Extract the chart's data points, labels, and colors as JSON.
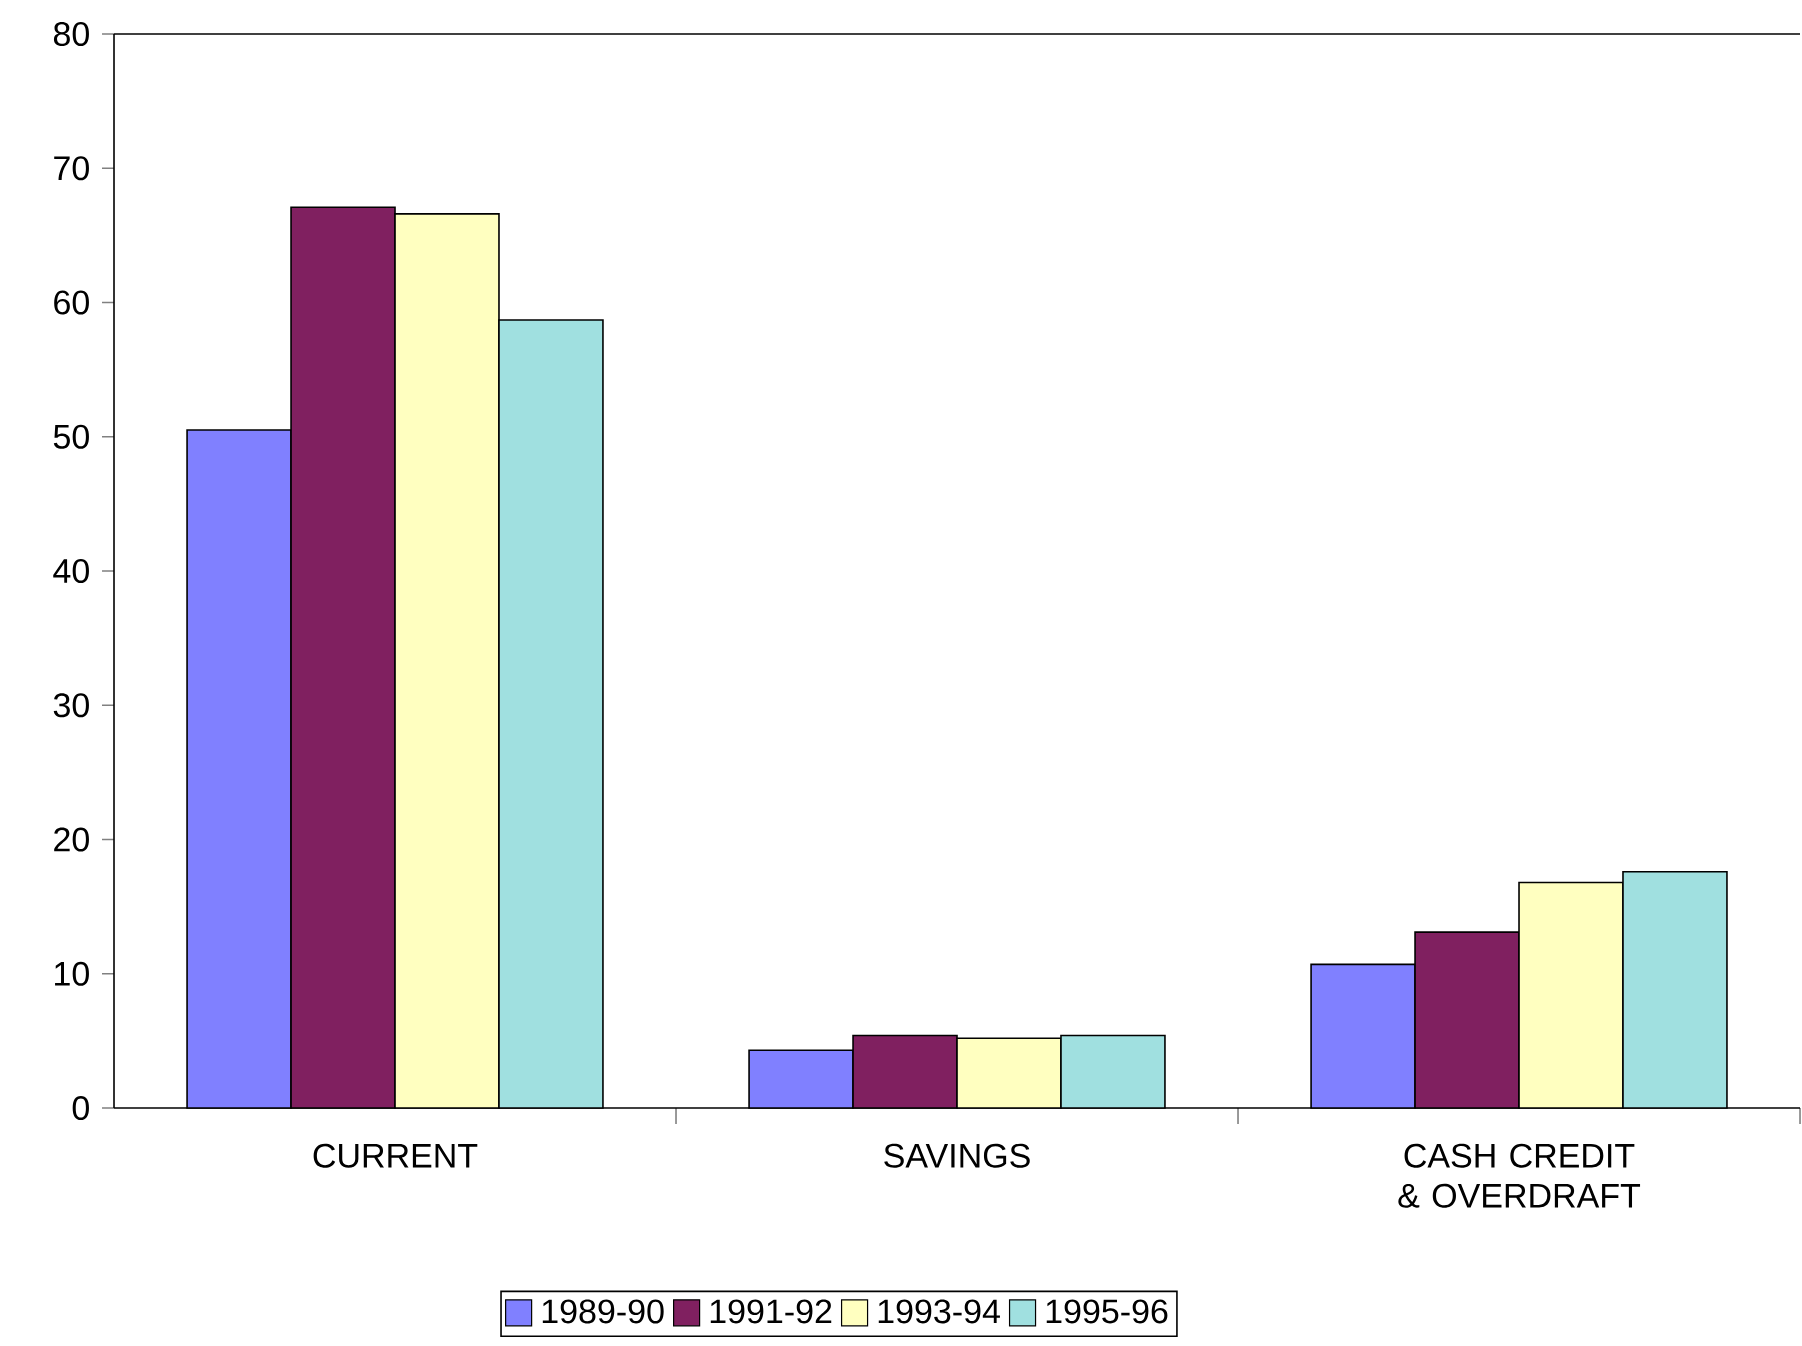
{
  "chart_data": {
    "type": "bar",
    "categories": [
      "CURRENT",
      "SAVINGS",
      "CASH CREDIT & OVERDRAFT"
    ],
    "series": [
      {
        "name": "1989-90",
        "color": "#8080ff",
        "values": [
          50.5,
          4.3,
          10.7
        ]
      },
      {
        "name": "1991-92",
        "color": "#802060",
        "values": [
          67.1,
          5.4,
          13.1
        ]
      },
      {
        "name": "1993-94",
        "color": "#ffffc0",
        "values": [
          66.6,
          5.2,
          16.8
        ]
      },
      {
        "name": "1995-96",
        "color": "#a0e0e0",
        "values": [
          58.7,
          5.4,
          17.6
        ]
      }
    ],
    "ylim": [
      0,
      80
    ],
    "yticks": [
      0,
      10,
      20,
      30,
      40,
      50,
      60,
      70,
      80
    ],
    "legend": "bottom"
  }
}
